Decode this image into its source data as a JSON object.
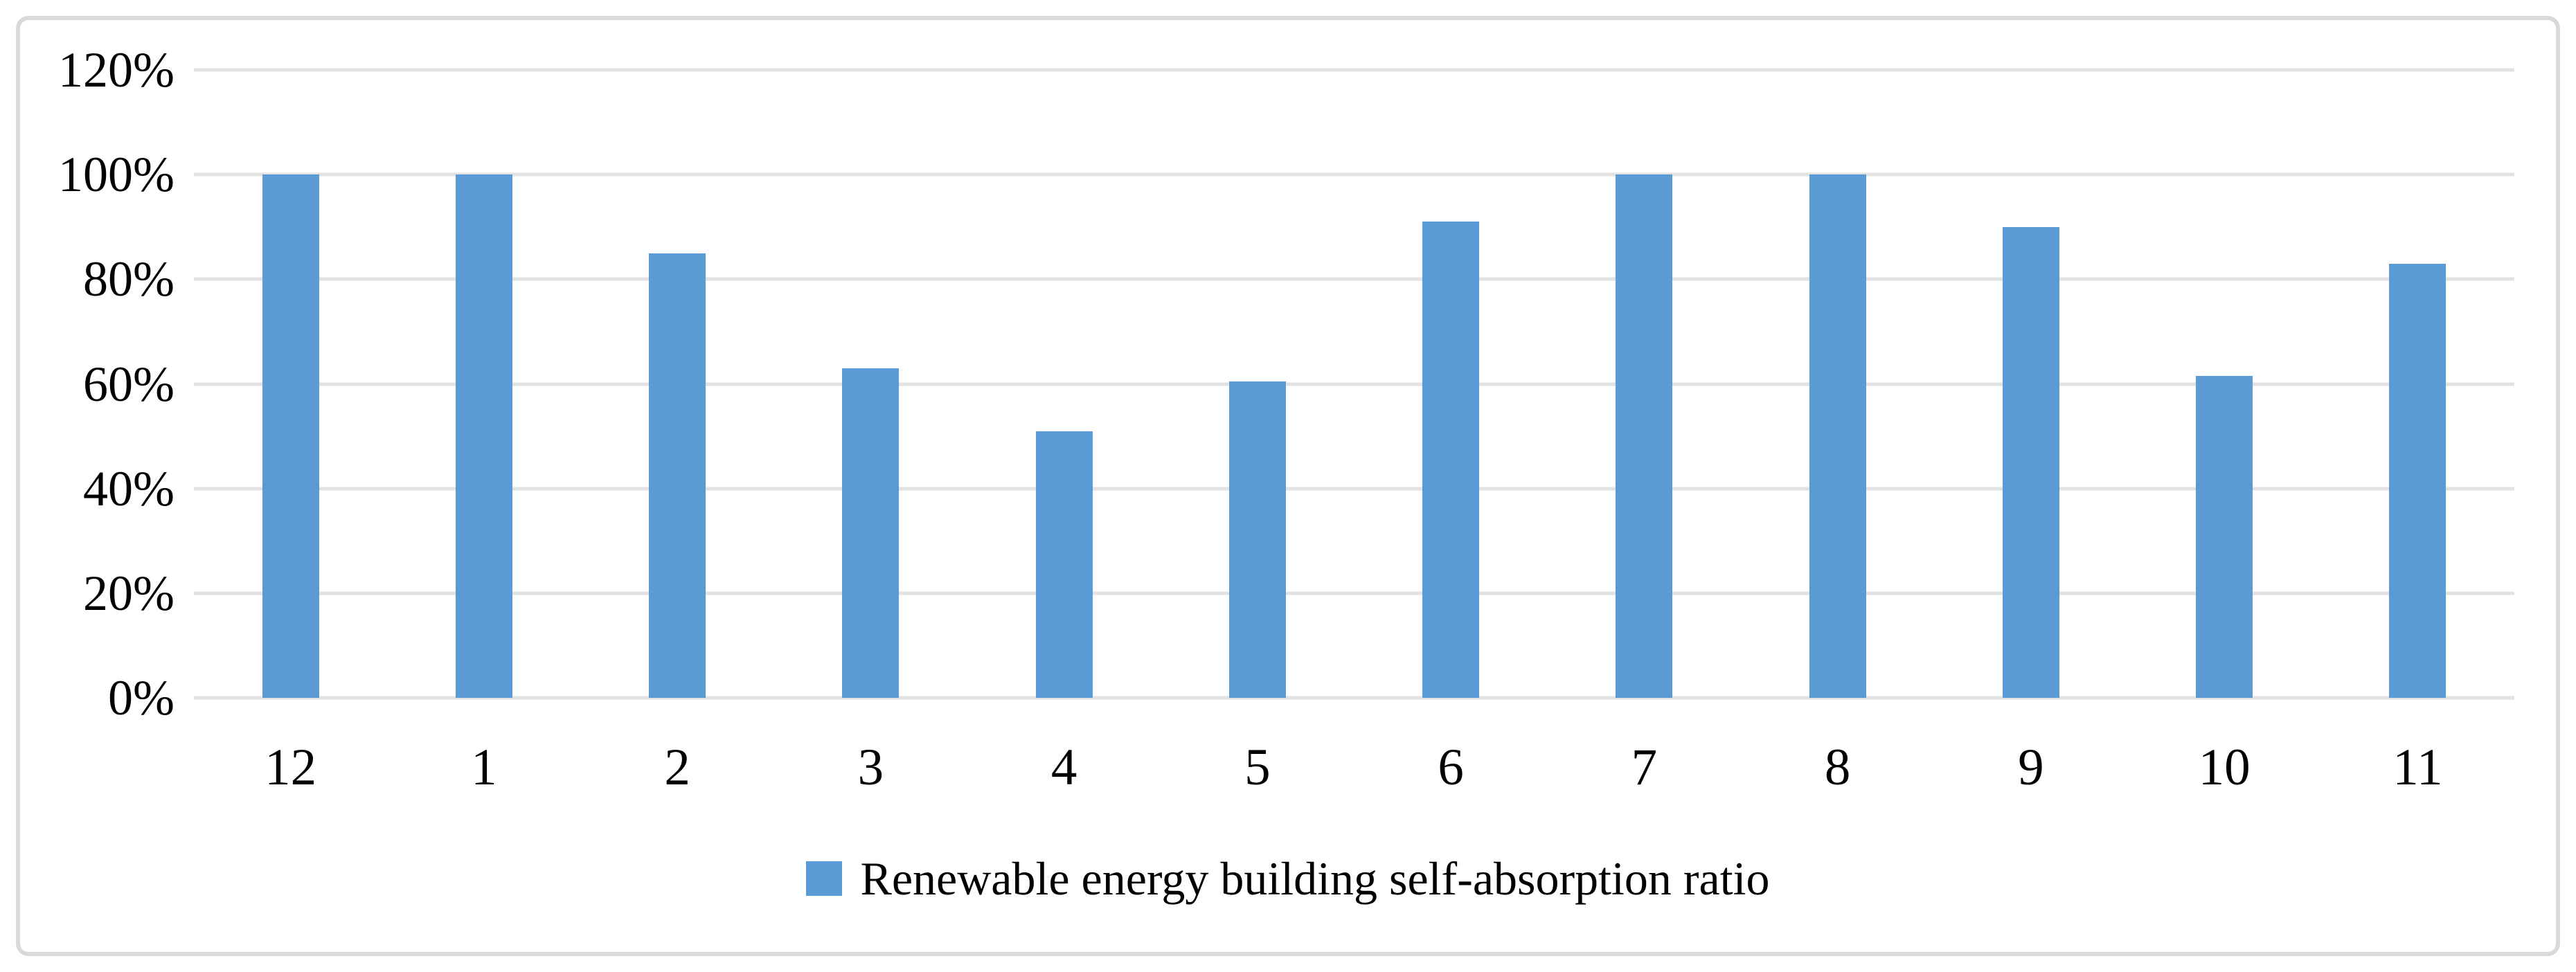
{
  "figure": {
    "background": "#FFFFFF",
    "border_color": "#D9D9D9"
  },
  "chart_data": {
    "type": "bar",
    "title": "",
    "xlabel": "",
    "ylabel": "",
    "categories": [
      "12",
      "1",
      "2",
      "3",
      "4",
      "5",
      "6",
      "7",
      "8",
      "9",
      "10",
      "11"
    ],
    "series": [
      {
        "name": "Renewable energy building self-absorption ratio",
        "values": [
          100,
          100,
          85,
          63,
          51,
          60.5,
          91,
          100,
          100,
          90,
          61.5,
          83
        ]
      }
    ],
    "unit": "%",
    "ylim": [
      0,
      120
    ],
    "ytick_step": 20,
    "ytick_labels": [
      "0%",
      "20%",
      "40%",
      "60%",
      "80%",
      "100%",
      "120%"
    ],
    "grid": "horizontal",
    "legend_position": "bottom",
    "legend": "Renewable energy building self-absorption ratio",
    "colors": {
      "bar": "#5B9BD5",
      "gridline": "#E2E2E2",
      "text": "#000000"
    }
  }
}
